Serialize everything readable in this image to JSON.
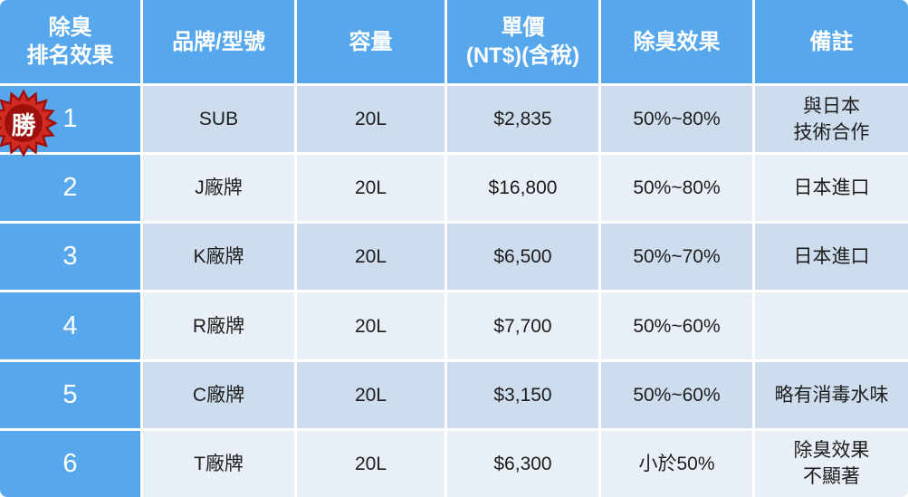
{
  "chart_data": {
    "type": "table",
    "columns": [
      "除臭\n排名效果",
      "品牌/型號",
      "容量",
      "單價\n(NT$)(含稅)",
      "除臭效果",
      "備註"
    ],
    "rows": [
      [
        "1",
        "SUB",
        "20L",
        "$2,835",
        "50%~80%",
        "與日本\n技術合作"
      ],
      [
        "2",
        "J廠牌",
        "20L",
        "$16,800",
        "50%~80%",
        "日本進口"
      ],
      [
        "3",
        "K廠牌",
        "20L",
        "$6,500",
        "50%~70%",
        "日本進口"
      ],
      [
        "4",
        "R廠牌",
        "20L",
        "$7,700",
        "50%~60%",
        ""
      ],
      [
        "5",
        "C廠牌",
        "20L",
        "$3,150",
        "50%~60%",
        "略有消毒水味"
      ],
      [
        "6",
        "T廠牌",
        "20L",
        "$6,300",
        "小於50%",
        "除臭效果\n不顯著"
      ]
    ],
    "winner_row_index": 0
  },
  "badge": {
    "label": "勝"
  },
  "colors": {
    "header_blue": "#56a7ec",
    "row_light_a": "#cedded",
    "row_light_b": "#e9eff7",
    "grid_white": "#ffffff",
    "text_dark": "#1d1d1d",
    "badge_red": "#cf2b22",
    "badge_dark_red": "#9e100c",
    "badge_text": "#ffffff"
  }
}
